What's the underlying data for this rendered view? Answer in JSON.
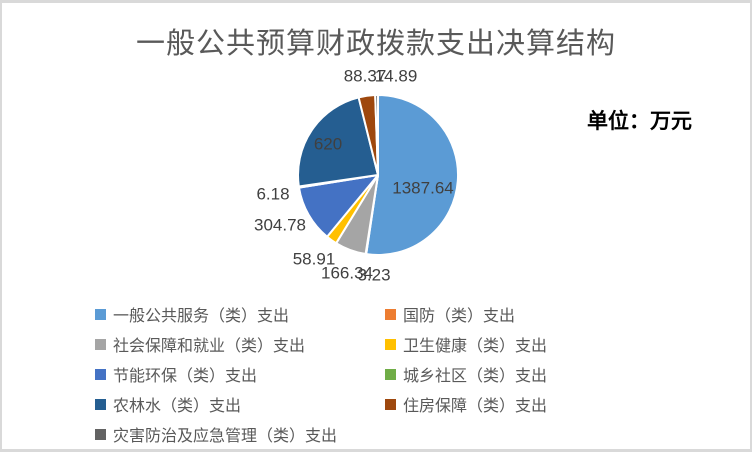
{
  "chart_data": {
    "type": "pie",
    "title": "一般公共预算财政拨款支出决算结构",
    "unit": "单位：万元",
    "legend_position": "bottom-left, two columns",
    "grid": false,
    "slices": [
      {
        "label": "一般公共服务（类）支出",
        "value": 1387.64,
        "display": "1387.64",
        "color": "#5B9BD5"
      },
      {
        "label": "国防（类）支出",
        "value": 3.23,
        "display": "3.23",
        "color": "#ED7D31"
      },
      {
        "label": "社会保障和就业（类）支出",
        "value": 166.34,
        "display": "166.34",
        "color": "#A5A5A5"
      },
      {
        "label": "卫生健康（类）支出",
        "value": 58.91,
        "display": "58.91",
        "color": "#FFC000"
      },
      {
        "label": "节能环保（类）支出",
        "value": 304.78,
        "display": "304.78",
        "color": "#4472C4"
      },
      {
        "label": "城乡社区（类）支出",
        "value": 6.18,
        "display": "6.18",
        "color": "#70AD47"
      },
      {
        "label": "农林水（类）支出",
        "value": 620,
        "display": "620",
        "color": "#255E91"
      },
      {
        "label": "住房保障（类）支出",
        "value": 88.37,
        "display": "88.37",
        "color": "#9E480E"
      },
      {
        "label": "灾害防治及应急管理（类）支出",
        "value": 14.89,
        "display": "14.89",
        "color": "#636363"
      }
    ]
  }
}
